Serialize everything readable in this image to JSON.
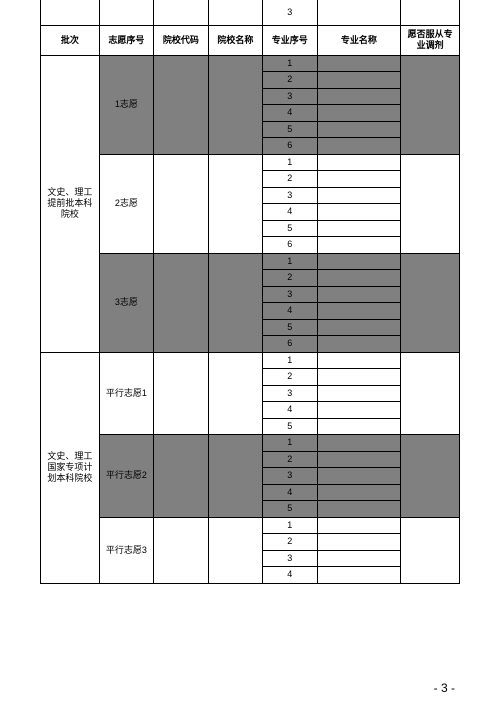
{
  "top_stray_value": "3",
  "headers": {
    "batch": "批次",
    "choice_no": "志愿序号",
    "univ_code": "院校代码",
    "univ_name": "院校名称",
    "major_no": "专业序号",
    "major_name": "专业名称",
    "adjust": "愿否服从专业调剂"
  },
  "major_numbers": [
    "1",
    "2",
    "3",
    "4",
    "5",
    "6"
  ],
  "major_numbers5": [
    "1",
    "2",
    "3",
    "4",
    "5"
  ],
  "section1": {
    "batch_label": "文史、理工提前批本科院校",
    "choices": [
      {
        "label": "1志愿",
        "shaded": true,
        "rows": 6
      },
      {
        "label": "2志愿",
        "shaded": false,
        "rows": 6
      },
      {
        "label": "3志愿",
        "shaded": true,
        "rows": 6
      }
    ]
  },
  "section2": {
    "batch_label": "文史、理工国家专项计划本科院校",
    "choices": [
      {
        "label": "平行志愿1",
        "shaded": false,
        "rows": 5
      },
      {
        "label": "平行志愿2",
        "shaded": true,
        "rows": 5
      },
      {
        "label": "平行志愿3",
        "shaded": false,
        "rows_visible": 4
      }
    ]
  },
  "page_number": "- 3 -",
  "colors": {
    "shaded": "#808080",
    "border": "#000000",
    "background": "#ffffff"
  }
}
